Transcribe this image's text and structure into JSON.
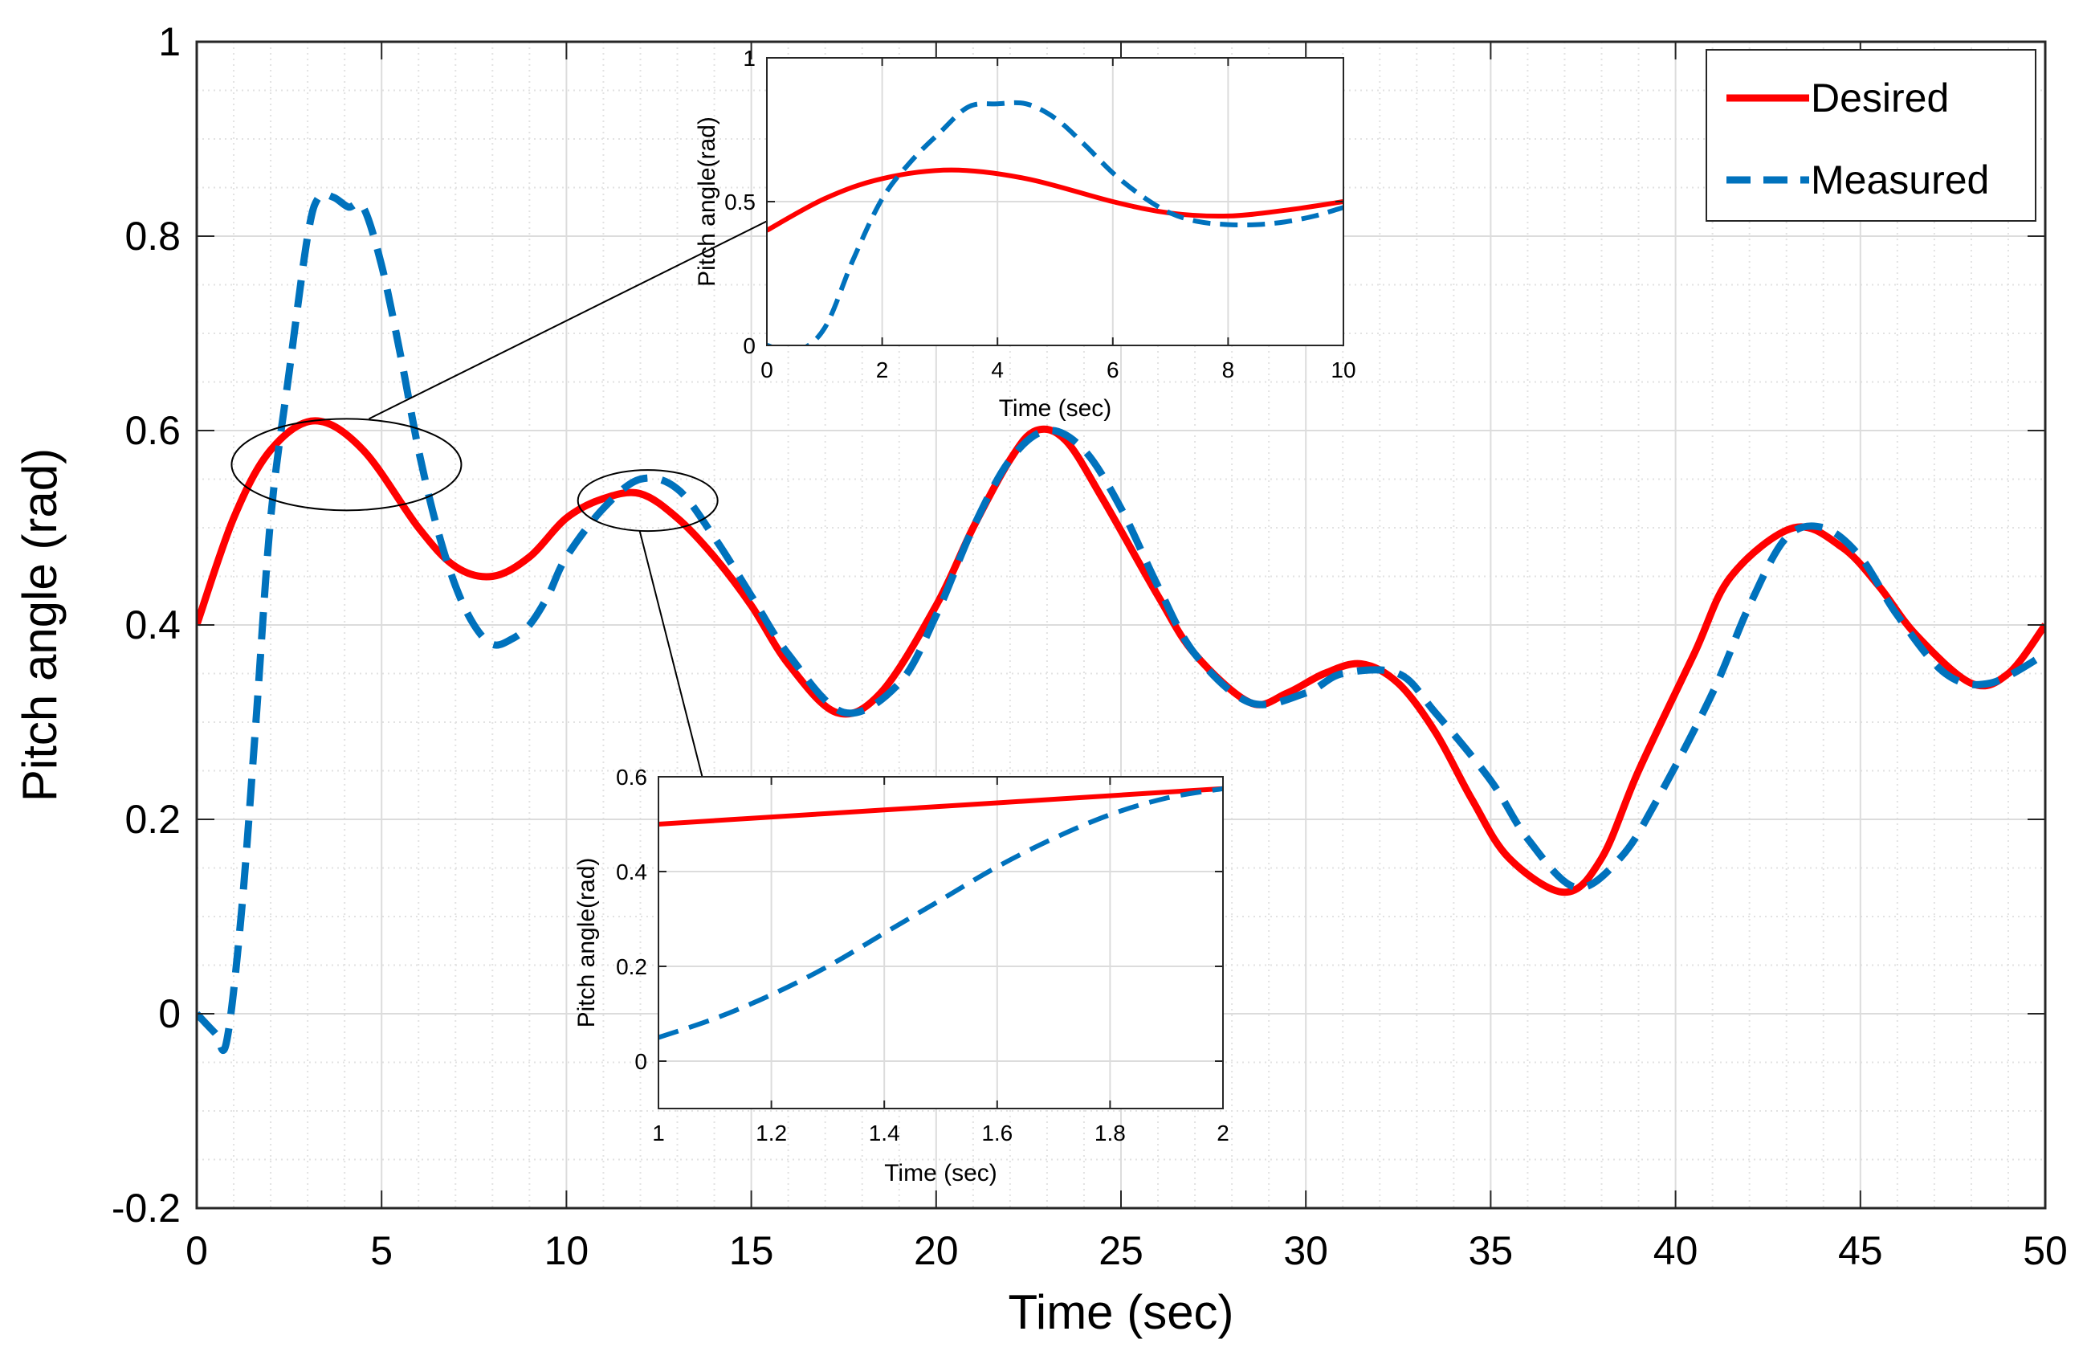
{
  "chart_data": [
    {
      "type": "line",
      "role": "main",
      "xlabel": "Time (sec)",
      "ylabel": "Pitch angle (rad)",
      "xlim": [
        0,
        50
      ],
      "ylim": [
        -0.2,
        1
      ],
      "xticks": [
        0,
        5,
        10,
        15,
        20,
        25,
        30,
        35,
        40,
        45,
        50
      ],
      "xtick_labels": [
        "0",
        "5",
        "10",
        "15",
        "20",
        "25",
        "30",
        "35",
        "40",
        "45",
        "50"
      ],
      "yticks": [
        -0.2,
        0,
        0.2,
        0.4,
        0.6,
        0.8,
        1
      ],
      "ytick_labels": [
        "-0.2",
        "0",
        "0.2",
        "0.4",
        "0.6",
        "0.8",
        "1"
      ],
      "grid": "major and minor",
      "legend": {
        "position": "top-right",
        "entries": [
          "Desired",
          "Measured"
        ]
      },
      "series": [
        {
          "name": "Desired",
          "color": "#ff0000",
          "style": "solid",
          "x": [
            0,
            1,
            2,
            3.2,
            4.5,
            6,
            7,
            8,
            9,
            10,
            11,
            12,
            13,
            14,
            15,
            16,
            17.3,
            18.5,
            20,
            21,
            22,
            22.7,
            23.5,
            24.5,
            26,
            27,
            28.5,
            29.5,
            30.5,
            31.5,
            32.5,
            33.5,
            34.5,
            35.5,
            37,
            38,
            39,
            40.5,
            41.5,
            43.2,
            44.5,
            45.5,
            46.5,
            48,
            49,
            50
          ],
          "y": [
            0.4,
            0.51,
            0.58,
            0.61,
            0.58,
            0.5,
            0.46,
            0.45,
            0.47,
            0.51,
            0.53,
            0.535,
            0.51,
            0.47,
            0.42,
            0.36,
            0.31,
            0.33,
            0.42,
            0.5,
            0.57,
            0.6,
            0.59,
            0.53,
            0.43,
            0.37,
            0.32,
            0.33,
            0.35,
            0.36,
            0.34,
            0.29,
            0.22,
            0.16,
            0.125,
            0.16,
            0.25,
            0.37,
            0.45,
            0.5,
            0.48,
            0.44,
            0.39,
            0.34,
            0.35,
            0.4
          ]
        },
        {
          "name": "Measured",
          "color": "#0072bd",
          "style": "dashed",
          "x": [
            0,
            0.5,
            0.8,
            1.2,
            1.6,
            2,
            2.5,
            3,
            3.3,
            3.7,
            4.1,
            4.5,
            5,
            5.5,
            6,
            6.5,
            7,
            7.5,
            8,
            8.5,
            9,
            9.5,
            10,
            11,
            12,
            13,
            14,
            15,
            16,
            17.5,
            19,
            20,
            21,
            22,
            23,
            24,
            25,
            26,
            27,
            28.5,
            30,
            31,
            32.5,
            33.5,
            35,
            36,
            37.3,
            38.5,
            39.5,
            41,
            42,
            43,
            44,
            45,
            46,
            47.3,
            48.5,
            50
          ],
          "y": [
            0.0,
            -0.02,
            -0.03,
            0.1,
            0.3,
            0.51,
            0.66,
            0.8,
            0.84,
            0.84,
            0.83,
            0.83,
            0.77,
            0.68,
            0.58,
            0.5,
            0.44,
            0.4,
            0.38,
            0.385,
            0.4,
            0.43,
            0.47,
            0.52,
            0.55,
            0.54,
            0.49,
            0.43,
            0.37,
            0.31,
            0.34,
            0.41,
            0.5,
            0.57,
            0.6,
            0.58,
            0.52,
            0.44,
            0.37,
            0.32,
            0.33,
            0.35,
            0.35,
            0.31,
            0.24,
            0.18,
            0.13,
            0.16,
            0.22,
            0.33,
            0.42,
            0.49,
            0.5,
            0.47,
            0.41,
            0.35,
            0.34,
            0.37
          ]
        }
      ]
    },
    {
      "type": "line",
      "role": "inset-upper",
      "xlabel": "Time (sec)",
      "ylabel": "Pitch angle(rad)",
      "xlim": [
        0,
        10
      ],
      "ylim": [
        0,
        1
      ],
      "xticks": [
        0,
        2,
        4,
        6,
        8,
        10
      ],
      "xtick_labels": [
        "0",
        "2",
        "4",
        "6",
        "8",
        "10"
      ],
      "yticks": [
        0,
        0.5,
        1
      ],
      "ytick_labels": [
        "0",
        "0.5",
        "1"
      ],
      "grid": "major",
      "series": [
        {
          "name": "Desired",
          "color": "#ff0000",
          "style": "solid",
          "x": [
            0,
            1,
            2,
            3.2,
            4.5,
            6,
            7,
            8,
            9,
            10
          ],
          "y": [
            0.4,
            0.51,
            0.58,
            0.61,
            0.58,
            0.5,
            0.46,
            0.45,
            0.47,
            0.5
          ]
        },
        {
          "name": "Measured",
          "color": "#0072bd",
          "style": "dashed",
          "x": [
            0,
            0.5,
            1,
            1.5,
            2,
            2.5,
            3,
            3.5,
            4,
            4.5,
            5,
            5.5,
            6,
            6.5,
            7,
            7.5,
            8,
            8.5,
            9,
            9.5,
            10
          ],
          "y": [
            0.0,
            -0.02,
            0.06,
            0.3,
            0.51,
            0.64,
            0.74,
            0.83,
            0.84,
            0.84,
            0.79,
            0.7,
            0.6,
            0.52,
            0.46,
            0.43,
            0.42,
            0.42,
            0.43,
            0.45,
            0.48
          ]
        }
      ]
    },
    {
      "type": "line",
      "role": "inset-lower",
      "xlabel": "Time (sec)",
      "ylabel": "Pitch angle(rad)",
      "xlim": [
        1,
        2
      ],
      "ylim": [
        -0.1,
        0.6
      ],
      "xticks": [
        1,
        1.2,
        1.4,
        1.6,
        1.8,
        2
      ],
      "xtick_labels": [
        "1",
        "1.2",
        "1.4",
        "1.6",
        "1.8",
        "2"
      ],
      "yticks": [
        0,
        0.2,
        0.4,
        0.6
      ],
      "ytick_labels": [
        "0",
        "0.2",
        "0.4",
        "0.6"
      ],
      "grid": "major",
      "series": [
        {
          "name": "Desired",
          "color": "#ff0000",
          "style": "solid",
          "x": [
            1,
            1.2,
            1.4,
            1.6,
            1.8,
            2
          ],
          "y": [
            0.5,
            0.515,
            0.53,
            0.545,
            0.56,
            0.575
          ]
        },
        {
          "name": "Measured",
          "color": "#0072bd",
          "style": "dashed",
          "x": [
            1,
            1.1,
            1.2,
            1.3,
            1.4,
            1.5,
            1.6,
            1.7,
            1.8,
            1.9,
            2
          ],
          "y": [
            0.05,
            0.09,
            0.14,
            0.2,
            0.27,
            0.34,
            0.41,
            0.47,
            0.52,
            0.555,
            0.575
          ]
        }
      ]
    }
  ]
}
